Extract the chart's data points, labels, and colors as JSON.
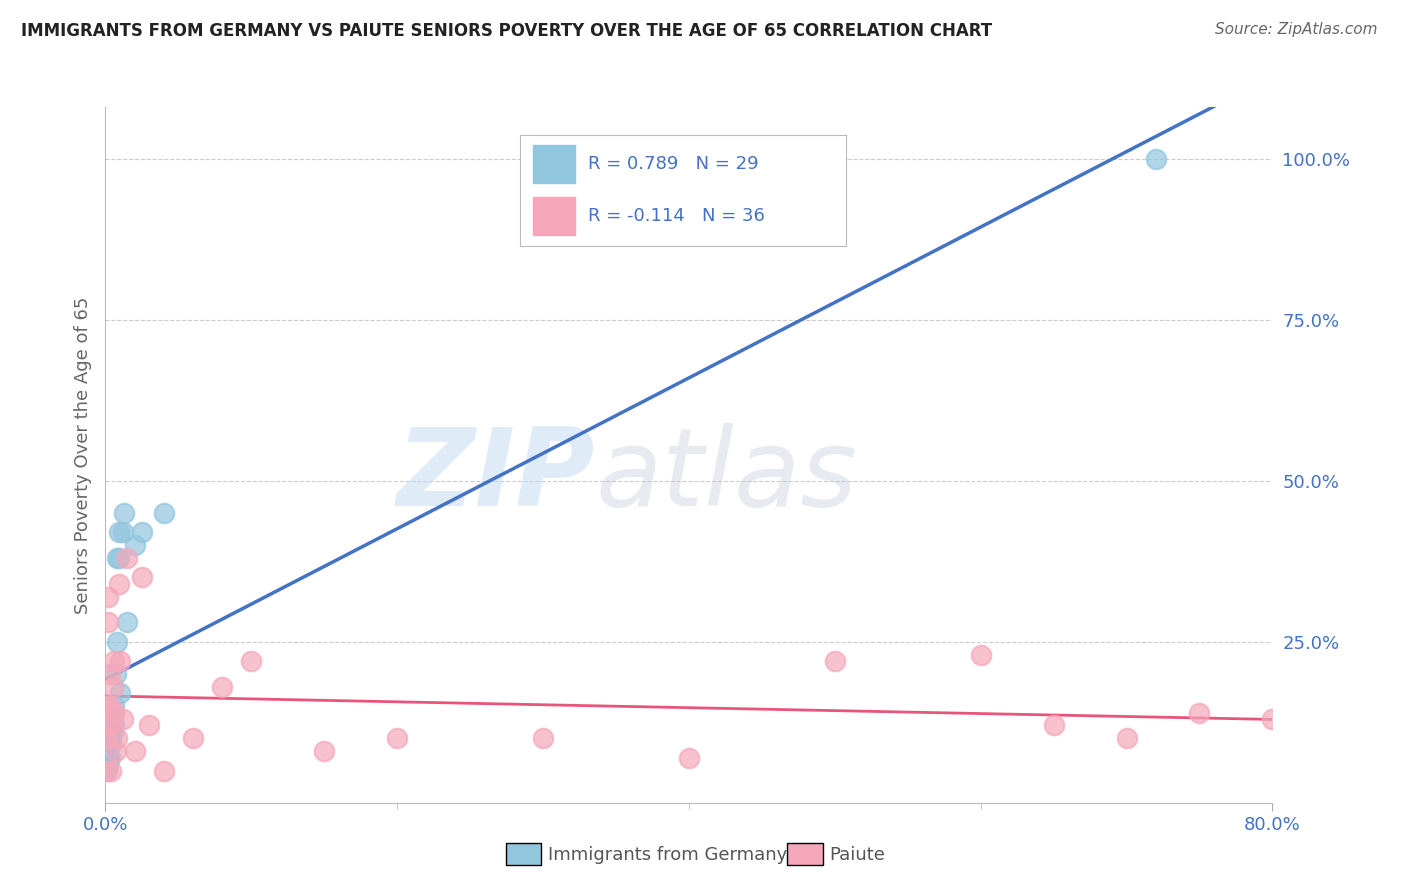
{
  "title": "IMMIGRANTS FROM GERMANY VS PAIUTE SENIORS POVERTY OVER THE AGE OF 65 CORRELATION CHART",
  "source": "Source: ZipAtlas.com",
  "ylabel": "Seniors Poverty Over the Age of 65",
  "legend_blue_r": "0.789",
  "legend_blue_n": "29",
  "legend_pink_r": "-0.114",
  "legend_pink_n": "36",
  "legend_label_blue": "Immigrants from Germany",
  "legend_label_pink": "Paiute",
  "blue_color": "#92C5DE",
  "pink_color": "#F4A7B9",
  "blue_line_color": "#4472C4",
  "pink_line_color": "#E8557A",
  "title_color": "#222222",
  "source_color": "#666666",
  "legend_text_color": "#4472C4",
  "yaxis_tick_color": "#4472C4",
  "xaxis_tick_color": "#4472C4",
  "blue_scatter_x": [
    0.0005,
    0.001,
    0.001,
    0.0015,
    0.0015,
    0.002,
    0.002,
    0.003,
    0.003,
    0.003,
    0.004,
    0.004,
    0.005,
    0.005,
    0.006,
    0.006,
    0.007,
    0.008,
    0.008,
    0.009,
    0.009,
    0.01,
    0.012,
    0.013,
    0.015,
    0.02,
    0.025,
    0.04,
    0.72
  ],
  "blue_scatter_y": [
    0.05,
    0.055,
    0.06,
    0.065,
    0.07,
    0.065,
    0.08,
    0.07,
    0.09,
    0.1,
    0.1,
    0.12,
    0.11,
    0.13,
    0.12,
    0.15,
    0.2,
    0.25,
    0.38,
    0.42,
    0.38,
    0.17,
    0.42,
    0.45,
    0.28,
    0.4,
    0.42,
    0.45,
    1.0
  ],
  "pink_scatter_x": [
    0.0005,
    0.001,
    0.001,
    0.0015,
    0.002,
    0.002,
    0.003,
    0.003,
    0.004,
    0.004,
    0.005,
    0.006,
    0.006,
    0.007,
    0.008,
    0.009,
    0.01,
    0.012,
    0.015,
    0.02,
    0.025,
    0.03,
    0.04,
    0.06,
    0.08,
    0.1,
    0.15,
    0.2,
    0.3,
    0.4,
    0.5,
    0.6,
    0.65,
    0.7,
    0.75,
    0.8
  ],
  "pink_scatter_y": [
    0.15,
    0.05,
    0.1,
    0.28,
    0.12,
    0.32,
    0.2,
    0.15,
    0.05,
    0.12,
    0.18,
    0.14,
    0.22,
    0.08,
    0.1,
    0.34,
    0.22,
    0.13,
    0.38,
    0.08,
    0.35,
    0.12,
    0.05,
    0.1,
    0.18,
    0.22,
    0.08,
    0.1,
    0.1,
    0.07,
    0.22,
    0.23,
    0.12,
    0.1,
    0.14,
    0.13
  ],
  "xlim": [
    0.0,
    0.8
  ],
  "ylim": [
    0.0,
    1.08
  ],
  "ytick_positions": [
    0.0,
    0.25,
    0.5,
    0.75,
    1.0
  ],
  "ytick_labels": [
    "",
    "25.0%",
    "50.0%",
    "75.0%",
    "100.0%"
  ],
  "xtick_positions": [
    0.0,
    0.8
  ],
  "xtick_labels": [
    "0.0%",
    "80.0%"
  ],
  "background_color": "#FFFFFF",
  "grid_color": "#CCCCCC"
}
